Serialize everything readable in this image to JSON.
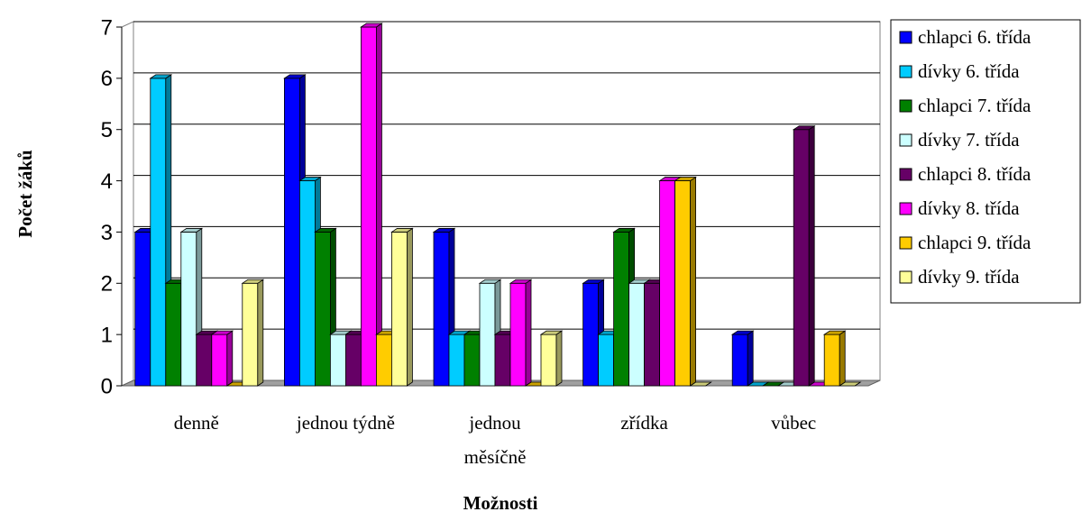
{
  "chart_data": {
    "type": "bar3d",
    "y_label": "Počet žáků",
    "x_label": "Možnosti",
    "categories": [
      "denně",
      "jednou týdně",
      "jednou\nměsíčně",
      "zřídka",
      "vůbec"
    ],
    "series": [
      {
        "name": "chlapci 6. třída",
        "color": "#0000ff",
        "values": [
          3,
          6,
          3,
          2,
          1
        ]
      },
      {
        "name": "dívky 6. třída",
        "color": "#00ccff",
        "values": [
          6,
          4,
          1,
          1,
          0
        ]
      },
      {
        "name": "chlapci 7. třída",
        "color": "#008000",
        "values": [
          2,
          3,
          1,
          3,
          0
        ]
      },
      {
        "name": "dívky 7. třída",
        "color": "#ccffff",
        "values": [
          3,
          1,
          2,
          2,
          0
        ]
      },
      {
        "name": "chlapci 8. třída",
        "color": "#660066",
        "values": [
          1,
          1,
          1,
          2,
          5
        ]
      },
      {
        "name": "dívky 8. třída",
        "color": "#ff00ff",
        "values": [
          1,
          7,
          2,
          4,
          0
        ]
      },
      {
        "name": "chlapci 9. třída",
        "color": "#ffcc00",
        "values": [
          0,
          1,
          0,
          4,
          1
        ]
      },
      {
        "name": "dívky 9. třída",
        "color": "#ffff99",
        "values": [
          2,
          3,
          1,
          0,
          0
        ]
      }
    ],
    "ylim": [
      0,
      7
    ],
    "yticks": [
      0,
      1,
      2,
      3,
      4,
      5,
      6,
      7
    ],
    "grid": true,
    "legend": "right"
  }
}
